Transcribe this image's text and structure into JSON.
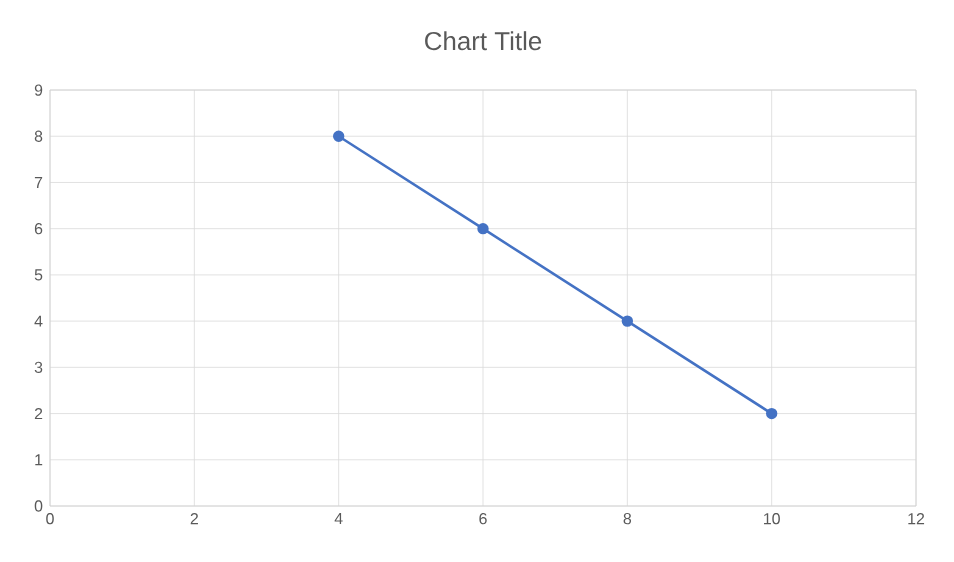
{
  "chart_data": {
    "type": "line",
    "title": "Chart Title",
    "series": [
      {
        "color": "#4472c4",
        "x": [
          4,
          6,
          8,
          10
        ],
        "values": [
          8,
          6,
          4,
          2
        ]
      }
    ],
    "xlim": [
      0,
      12
    ],
    "xticks": [
      0,
      2,
      4,
      6,
      8,
      10,
      12
    ],
    "ylim": [
      0,
      9
    ],
    "yticks": [
      0,
      1,
      2,
      3,
      4,
      5,
      6,
      7,
      8,
      9
    ],
    "grid": true,
    "marker": "circle",
    "line_style": "solid"
  }
}
